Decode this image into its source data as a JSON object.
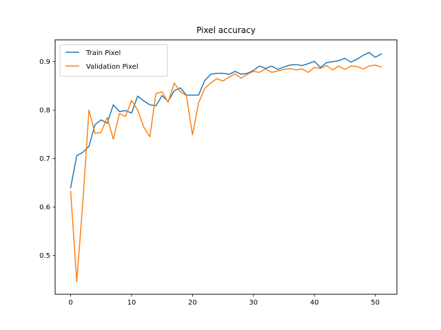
{
  "chart_data": {
    "type": "line",
    "title": "Pixel accuracy",
    "xlabel": "",
    "ylabel": "",
    "xlim": [
      -2.55,
      53.55
    ],
    "ylim": [
      0.42,
      0.945
    ],
    "xticks": [
      0,
      10,
      20,
      30,
      40,
      50
    ],
    "yticks": [
      0.5,
      0.6,
      0.7,
      0.8,
      0.9
    ],
    "ytick_labels": [
      "0.5",
      "0.6",
      "0.7",
      "0.8",
      "0.9"
    ],
    "legend_position": "upper-left",
    "grid": false,
    "x": [
      0,
      1,
      2,
      3,
      4,
      5,
      6,
      7,
      8,
      9,
      10,
      11,
      12,
      13,
      14,
      15,
      16,
      17,
      18,
      19,
      20,
      21,
      22,
      23,
      24,
      25,
      26,
      27,
      28,
      29,
      30,
      31,
      32,
      33,
      34,
      35,
      36,
      37,
      38,
      39,
      40,
      41,
      42,
      43,
      44,
      45,
      46,
      47,
      48,
      49,
      50,
      51
    ],
    "series": [
      {
        "name": "Train Pixel",
        "color": "#1f77b4",
        "values": [
          0.64,
          0.706,
          0.713,
          0.725,
          0.77,
          0.78,
          0.773,
          0.811,
          0.797,
          0.799,
          0.794,
          0.829,
          0.819,
          0.811,
          0.809,
          0.83,
          0.818,
          0.84,
          0.846,
          0.831,
          0.831,
          0.831,
          0.861,
          0.874,
          0.876,
          0.876,
          0.874,
          0.88,
          0.874,
          0.876,
          0.882,
          0.891,
          0.886,
          0.891,
          0.884,
          0.889,
          0.893,
          0.894,
          0.892,
          0.896,
          0.901,
          0.888,
          0.898,
          0.9,
          0.902,
          0.907,
          0.899,
          0.905,
          0.913,
          0.919,
          0.909,
          0.916
        ]
      },
      {
        "name": "Validation Pixel",
        "color": "#ff7f0e",
        "values": [
          0.632,
          0.446,
          0.61,
          0.8,
          0.752,
          0.754,
          0.785,
          0.74,
          0.793,
          0.787,
          0.82,
          0.8,
          0.765,
          0.745,
          0.834,
          0.838,
          0.816,
          0.856,
          0.838,
          0.83,
          0.749,
          0.815,
          0.845,
          0.856,
          0.865,
          0.86,
          0.868,
          0.875,
          0.866,
          0.874,
          0.88,
          0.878,
          0.885,
          0.878,
          0.881,
          0.884,
          0.886,
          0.883,
          0.885,
          0.878,
          0.888,
          0.886,
          0.892,
          0.883,
          0.891,
          0.884,
          0.891,
          0.89,
          0.885,
          0.891,
          0.893,
          0.889
        ]
      }
    ]
  }
}
